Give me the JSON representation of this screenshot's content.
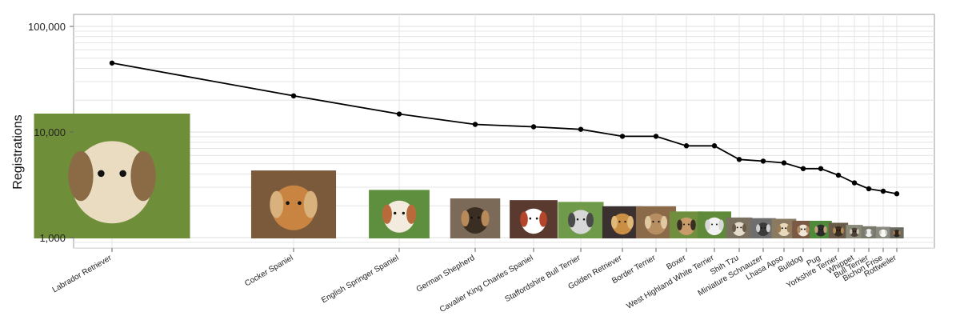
{
  "chart_data": {
    "type": "line",
    "title": "",
    "xlabel": "",
    "ylabel": "Registrations",
    "y_scale": "log",
    "ylim": [
      800,
      150000
    ],
    "y_ticks": [
      1000,
      10000,
      100000
    ],
    "y_tick_labels": [
      "1,000",
      "10,000",
      "100,000"
    ],
    "grid": true,
    "point_images": "dog-photo",
    "categories": [
      "Labrador Retriever",
      "Cocker Spaniel",
      "English Springer Spaniel",
      "German Shepherd",
      "Cavalier King Charles Spaniel",
      "Staffordshire Bull Terrier",
      "Golden Retriever",
      "Border Terrier",
      "Boxer",
      "West Highland White Terrier",
      "Shih Tzu",
      "Miniature Schnauzer",
      "Lhasa Apso",
      "Bulldog",
      "Pug",
      "Yorkshire Terrier",
      "Whippet",
      "Bull Terrier",
      "Bichon Frise",
      "Rottweiler"
    ],
    "values": [
      45000,
      22000,
      14800,
      11800,
      11200,
      10600,
      9100,
      9100,
      7400,
      7400,
      5500,
      5300,
      5100,
      4500,
      4500,
      3900,
      3300,
      2900,
      2750,
      2600
    ],
    "line_color": "#000000",
    "grid_color": "#e4e4e4",
    "frame_color": "#999999"
  }
}
